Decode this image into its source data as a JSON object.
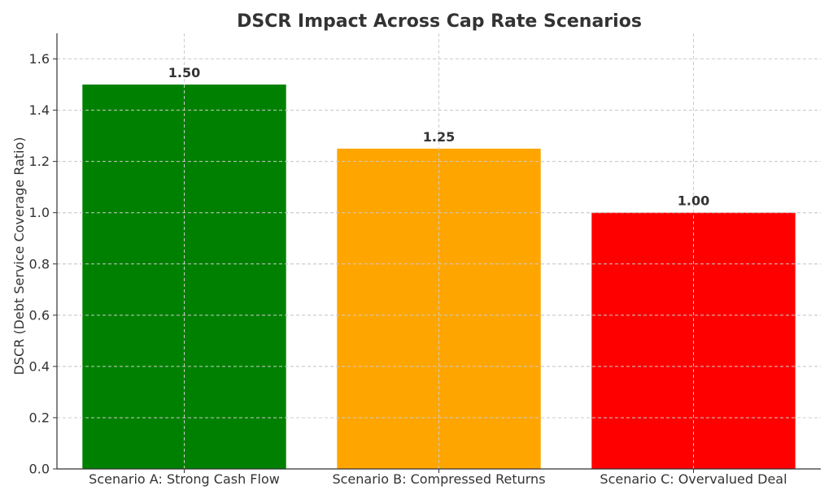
{
  "chart_data": {
    "type": "bar",
    "title": "DSCR Impact Across Cap Rate Scenarios",
    "xlabel": "",
    "ylabel": "DSCR (Debt Service Coverage Ratio)",
    "categories": [
      "Scenario A: Strong Cash Flow",
      "Scenario B: Compressed Returns",
      "Scenario C: Overvalued Deal"
    ],
    "values": [
      1.5,
      1.25,
      1.0
    ],
    "data_labels": [
      "1.50",
      "1.25",
      "1.00"
    ],
    "colors": [
      "#008000",
      "#FFA500",
      "#FF0000"
    ],
    "ylim": [
      0,
      1.7
    ],
    "yticks": [
      0.0,
      0.2,
      0.4,
      0.6,
      0.8,
      1.0,
      1.2,
      1.4,
      1.6
    ],
    "ytick_labels": [
      "0.0",
      "0.2",
      "0.4",
      "0.6",
      "0.8",
      "1.0",
      "1.2",
      "1.4",
      "1.6"
    ],
    "grid": true
  }
}
